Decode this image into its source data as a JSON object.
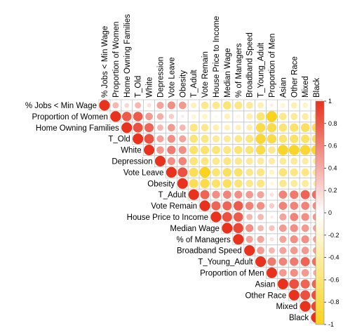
{
  "chart_data": {
    "type": "heatmap",
    "subtype": "correlation-matrix-upper",
    "variables": [
      "% Jobs < Min Wage",
      "Proportion of Women",
      "Home Owning Families",
      "T_Old",
      "White",
      "Depression",
      "Vote Leave",
      "Obesity",
      "T_Adult",
      "Vote Remain",
      "House Price to Income",
      "Median Wage",
      "% of Managers",
      "Broadband Speed",
      "T_Young_Adult",
      "Proportion of Men",
      "Asian",
      "Other Race",
      "Mixed",
      "Black"
    ],
    "correlation_upper": [
      [
        1,
        0.35,
        0.2,
        0.35,
        0.15,
        0.45,
        0.55,
        0.5,
        -0.3,
        -0.5,
        -0.5,
        -0.6,
        -0.55,
        -0.45,
        -0.35,
        0.1,
        -0.2,
        -0.35,
        -0.25,
        -0.1
      ],
      [
        1,
        0.8,
        0.8,
        0.5,
        0.4,
        0.25,
        0.1,
        -0.2,
        -0.25,
        -0.1,
        -0.3,
        -0.15,
        -0.35,
        -0.6,
        -1,
        -0.5,
        -0.45,
        -0.4,
        -0.35
      ],
      [
        1,
        0.85,
        0.75,
        0.35,
        0.5,
        0.35,
        -0.55,
        -0.5,
        -0.35,
        -0.3,
        -0.3,
        -0.35,
        -0.8,
        -0.8,
        -0.6,
        -0.65,
        -0.7,
        -0.75
      ],
      [
        1,
        0.85,
        0.45,
        0.55,
        0.45,
        -0.6,
        -0.55,
        -0.45,
        -0.45,
        -0.5,
        -0.55,
        -0.9,
        -0.8,
        -0.6,
        -0.65,
        -0.65,
        -0.7
      ],
      [
        1,
        0.5,
        0.65,
        0.55,
        -0.65,
        -0.65,
        -0.6,
        -0.55,
        -0.6,
        -0.6,
        -0.8,
        -0.5,
        -0.95,
        -0.95,
        -0.9,
        -0.9
      ],
      [
        1,
        0.55,
        0.6,
        -0.6,
        -0.55,
        -0.5,
        -0.55,
        -0.5,
        -0.45,
        -0.45,
        -0.4,
        -0.45,
        -0.45,
        -0.4,
        -0.45
      ],
      [
        1,
        0.85,
        -0.75,
        -1,
        -0.6,
        -0.7,
        -0.65,
        -0.5,
        -0.55,
        -0.25,
        -0.6,
        -0.55,
        -0.55,
        -0.5
      ],
      [
        1,
        -0.75,
        -0.8,
        -0.65,
        -0.7,
        -0.6,
        -0.5,
        -0.55,
        -0.15,
        -0.5,
        -0.45,
        -0.45,
        -0.4
      ],
      [
        1,
        0.75,
        0.55,
        0.6,
        0.55,
        0.5,
        0.45,
        0.15,
        0.6,
        0.65,
        0.75,
        0.7
      ],
      [
        1,
        0.75,
        0.75,
        0.8,
        0.6,
        0.55,
        0.25,
        0.6,
        0.6,
        0.6,
        0.55
      ],
      [
        1,
        0.85,
        0.8,
        0.35,
        0.35,
        0.1,
        0.45,
        0.6,
        0.55,
        0.5
      ],
      [
        1,
        0.9,
        0.55,
        0.35,
        0.3,
        0.5,
        0.55,
        0.5,
        0.45
      ],
      [
        1,
        0.45,
        0.45,
        0.15,
        0.45,
        0.55,
        0.55,
        0.45
      ],
      [
        1,
        0.5,
        0.35,
        0.45,
        0.5,
        0.5,
        0.45
      ],
      [
        1,
        0.65,
        0.6,
        0.65,
        0.75,
        0.7
      ],
      [
        1,
        0.5,
        0.55,
        0.5,
        0.4
      ],
      [
        1,
        0.85,
        0.75,
        0.75
      ],
      [
        1,
        0.85,
        0.85
      ],
      [
        1,
        0.9
      ],
      [
        1
      ]
    ],
    "colorbar": {
      "ticks": [
        1,
        0.8,
        0.6,
        0.4,
        0.2,
        0,
        -0.2,
        -0.4,
        -0.6,
        -0.8,
        -1
      ],
      "range": [
        -1,
        1
      ],
      "color_high": "#e8321e",
      "color_mid": "#ffffff",
      "color_low": "#f9d31c"
    },
    "grid": true,
    "legend_position": "right"
  }
}
